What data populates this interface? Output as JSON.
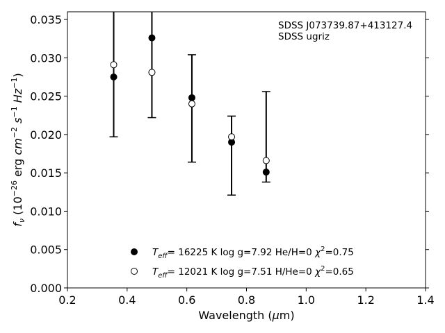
{
  "chart_data": {
    "type": "scatter",
    "xlabel": "Wavelength (μm)",
    "ylabel": "f_ν (10^-26 erg cm^-2 s^-1 Hz^-1)",
    "xlim": [
      0.2,
      1.4
    ],
    "ylim": [
      0.0,
      0.036
    ],
    "xticks": [
      "0.2",
      "0.4",
      "0.6",
      "0.8",
      "1.0",
      "1.2",
      "1.4"
    ],
    "yticks": [
      "0.000",
      "0.005",
      "0.010",
      "0.015",
      "0.020",
      "0.025",
      "0.030",
      "0.035"
    ],
    "annotations": [
      "SDSS J073739.87+413127.4",
      "SDSS ugriz"
    ],
    "legend_position": "lower-center",
    "observed": {
      "x": [
        0.355,
        0.483,
        0.617,
        0.75,
        0.866
      ],
      "y": [
        0.0275,
        0.0326,
        0.0248,
        0.019,
        0.0151
      ],
      "err_low": [
        0.0197,
        0.0222,
        0.0164,
        0.0121,
        0.0138
      ],
      "err_high": [
        0.036,
        0.036,
        0.0304,
        0.0224,
        0.0256
      ]
    },
    "series": [
      {
        "name": "T_eff= 16225 K  log g=7.92  He/H=0  χ²=0.75",
        "marker": "filled-circle",
        "color": "#000000",
        "x": [
          0.355,
          0.483,
          0.617,
          0.75,
          0.866
        ],
        "y": [
          0.0275,
          0.0326,
          0.0248,
          0.019,
          0.0151
        ]
      },
      {
        "name": "T_eff= 12021 K  log g=7.51  H/He=0  χ²=0.65",
        "marker": "open-circle",
        "color": "#000000",
        "x": [
          0.355,
          0.483,
          0.617,
          0.75,
          0.866
        ],
        "y": [
          0.0291,
          0.0281,
          0.024,
          0.0197,
          0.0166
        ]
      }
    ],
    "legend": {
      "entries": [
        {
          "teff_value": "= 16225 K  log g=7.92  He/H=0  ",
          "chi_value": "=0.75"
        },
        {
          "teff_value": "= 12021 K  log g=7.51  H/He=0  ",
          "chi_value": "=0.65"
        }
      ]
    }
  }
}
